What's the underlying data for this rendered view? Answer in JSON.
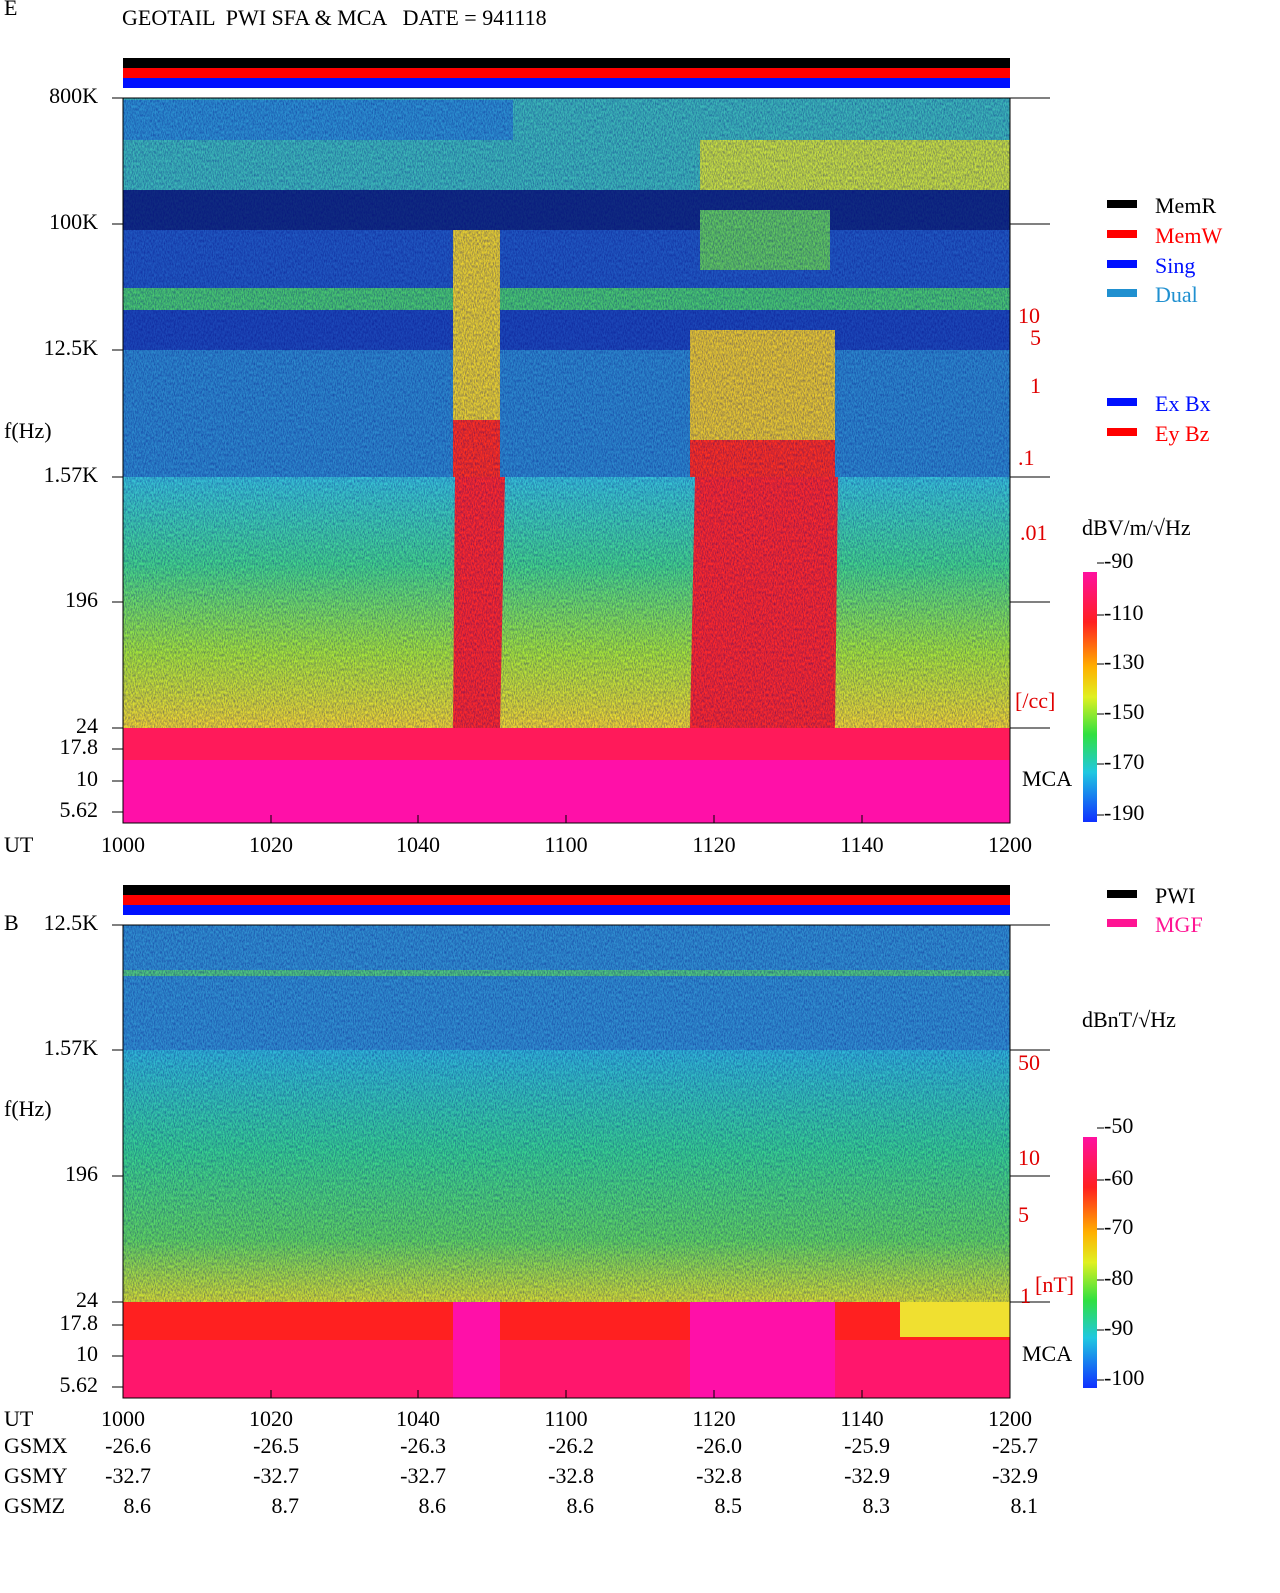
{
  "header": {
    "title": "GEOTAIL  PWI SFA & MCA   DATE = 941118"
  },
  "panels": [
    {
      "label": "E",
      "axis_title": "f(Hz)",
      "freq_ticks": [
        "800K",
        "100K",
        "12.5K",
        "1.57K",
        "196",
        "24",
        "17.8",
        "10",
        "5.62"
      ],
      "time_title": "UT",
      "times": [
        "1000",
        "1020",
        "1040",
        "1100",
        "1120",
        "1140",
        "1200"
      ],
      "right_scale": [
        "10",
        "5",
        "1",
        ".1",
        ".01",
        "[/cc]"
      ],
      "mca": "MCA",
      "legend": [
        "MemR",
        "MemW",
        "Sing",
        "Dual"
      ],
      "legend2": [
        "Ex Bx",
        "Ey Bz"
      ],
      "colorbar_title": "dBV/m/√Hz",
      "colorbar_ticks": [
        "-90",
        "-110",
        "-130",
        "-150",
        "-170",
        "-190"
      ]
    },
    {
      "label": "B",
      "axis_title": "f(Hz)",
      "freq_ticks": [
        "12.5K",
        "1.57K",
        "196",
        "24",
        "17.8",
        "10",
        "5.62"
      ],
      "time_title": "UT",
      "times": [
        "1000",
        "1020",
        "1040",
        "1100",
        "1120",
        "1140",
        "1200"
      ],
      "right_scale": [
        "50",
        "10",
        "5",
        "1",
        "[nT]"
      ],
      "mca": "MCA",
      "legend": [
        "PWI",
        "MGF"
      ],
      "colorbar_title": "dBnT/√Hz",
      "colorbar_ticks": [
        "-50",
        "-60",
        "-70",
        "-80",
        "-90",
        "-100"
      ]
    }
  ],
  "orbit": [
    {
      "name": "GSMX",
      "values": [
        "-26.6",
        "-26.5",
        "-26.3",
        "-26.2",
        "-26.0",
        "-25.9",
        "-25.7"
      ]
    },
    {
      "name": "GSMY",
      "values": [
        "-32.7",
        "-32.7",
        "-32.7",
        "-32.8",
        "-32.8",
        "-32.9",
        "-32.9"
      ]
    },
    {
      "name": "GSMZ",
      "values": [
        "8.6",
        "8.7",
        "8.6",
        "8.6",
        "8.5",
        "8.3",
        "8.1"
      ]
    }
  ]
}
